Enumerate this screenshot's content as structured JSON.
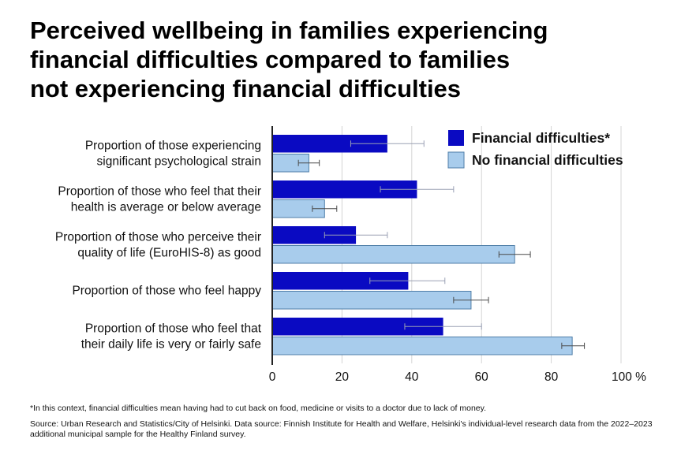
{
  "title_lines": [
    "Perceived wellbeing in families experiencing",
    "financial difficulties compared to families",
    "not experiencing financial difficulties"
  ],
  "chart_data": {
    "type": "bar",
    "orientation": "horizontal",
    "title": "Perceived wellbeing in families experiencing financial difficulties compared to families not experiencing financial difficulties",
    "categories": [
      [
        "Proportion of those experiencing",
        "significant psychological strain"
      ],
      [
        "Proportion of those who feel that their",
        "health is average or below average"
      ],
      [
        "Proportion of those who perceive their",
        "quality of life (EuroHIS-8) as good"
      ],
      [
        "Proportion of those who feel happy"
      ],
      [
        "Proportion of those who feel that",
        "their daily life is very or fairly safe"
      ]
    ],
    "series": [
      {
        "name": "Financial difficulties*",
        "color": "#0a0ac2",
        "values": [
          33,
          41.5,
          24,
          39,
          49
        ],
        "error_low": [
          22.5,
          31,
          15,
          28,
          38
        ],
        "error_high": [
          43.5,
          52,
          33,
          49.5,
          60
        ]
      },
      {
        "name": "No financial difficulties",
        "color": "#a8ccec",
        "values": [
          10.5,
          15,
          69.5,
          57,
          86
        ],
        "error_low": [
          7.5,
          11.5,
          65,
          52,
          83
        ],
        "error_high": [
          13.5,
          18.5,
          74,
          62,
          89.5
        ]
      }
    ],
    "xlim": [
      0,
      100
    ],
    "xticks": [
      0,
      20,
      40,
      60,
      80,
      100
    ],
    "xtick_labels": [
      "0",
      "20",
      "40",
      "60",
      "80",
      "100 %"
    ],
    "grid": true,
    "legend_position": "top-right"
  },
  "footnotes": {
    "definition": "*In this context, financial difficulties mean having had to cut back on food, medicine or visits to a doctor due to lack of money.",
    "source": "Source: Urban Research and Statistics/City of Helsinki. Data source: Finnish Institute for Health and Welfare, Helsinki's individual-level research data from the 2022–2023 additional municipal sample for the Healthy Finland survey."
  }
}
